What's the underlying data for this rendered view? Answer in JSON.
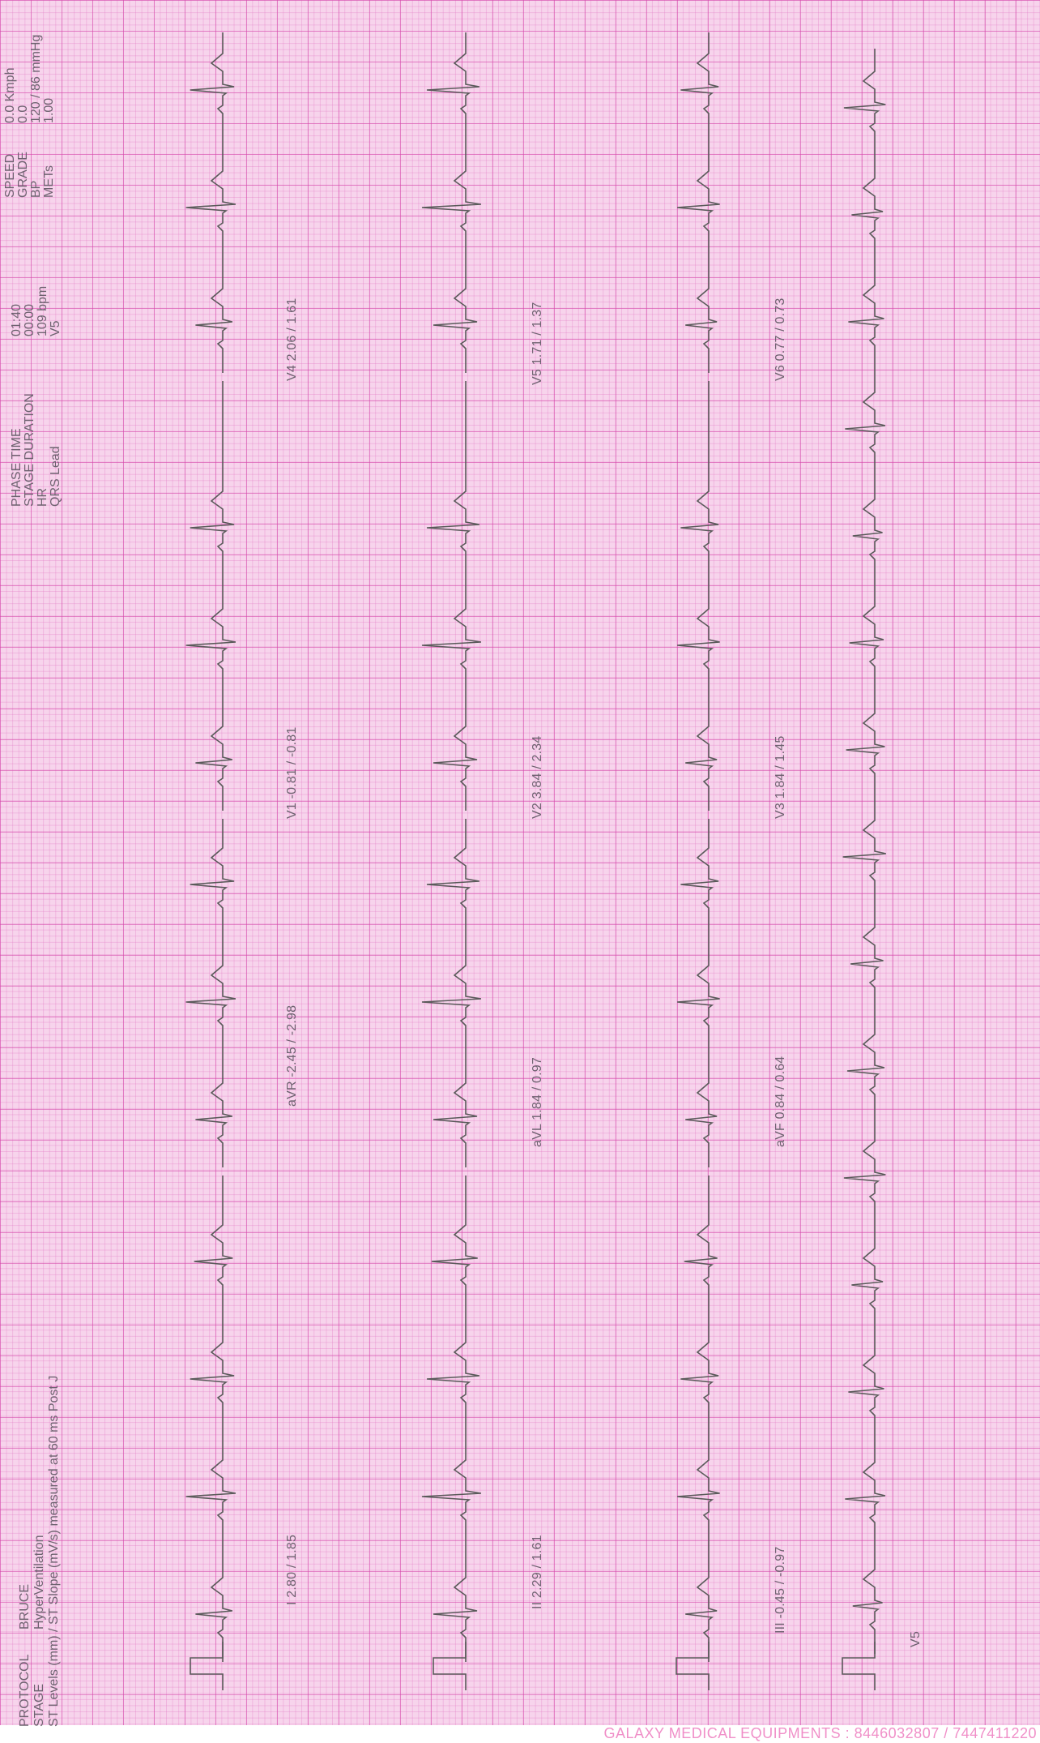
{
  "header": {
    "left_labels": [
      "PROTOCOL",
      "STAGE",
      "ST Levels (mm) / ST Slope (mV/s) measured at 60 ms Post J"
    ],
    "left_values": [
      "BRUCE",
      "HyperVentilation"
    ],
    "mid_labels": [
      "PHASE TIME",
      "STAGE DURATION",
      "HR",
      "QRS Lead"
    ],
    "mid_values": [
      "01:40",
      "00:00",
      "109 bpm",
      "V5"
    ],
    "right_labels": [
      "SPEED",
      "GRADE",
      "BP",
      "METs"
    ],
    "right_values": [
      "0.0 Kmph",
      "0.0",
      "120 / 86 mmHg",
      "1.00"
    ]
  },
  "lead_labels": {
    "I": "I  2.80 / 1.85",
    "aVR": "aVR  -2.45 / -2.98",
    "V1": "V1  -0.81 / -0.81",
    "V4": "V4  2.06 / 1.61",
    "II": "II  2.29 / 1.61",
    "aVL": "aVL  1.84 / 0.97",
    "V2": "V2  3.84 / 2.34",
    "V5": "V5  1.71 / 1.37",
    "III": "III  -0.45 / -0.97",
    "aVF": "aVF  0.84 / 0.64",
    "V3": "V3  1.84 / 1.45",
    "V6": "V6  0.77 / 0.73",
    "rhythm": "V5"
  },
  "footer": "GALAXY MEDICAL EQUIPMENTS : 8446032807 / 7447411220",
  "colors": {
    "paper": "#f7d4ec",
    "grid_major": "#d646aa",
    "grid_minor": "#e278c3",
    "trace": "#5a5a5a",
    "footer_text": "#f08fc8"
  }
}
